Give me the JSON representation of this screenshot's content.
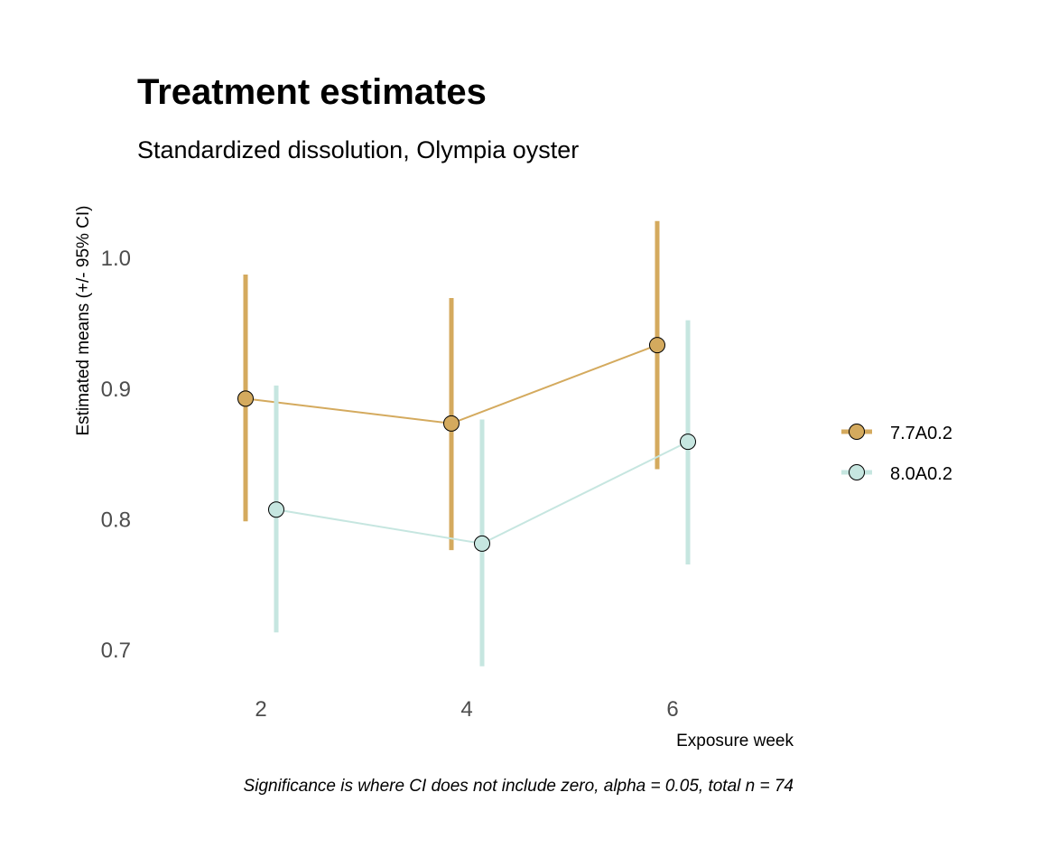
{
  "chart_data": {
    "type": "line",
    "title": "Treatment estimates",
    "subtitle": "Standardized dissolution, Olympia oyster",
    "xlabel": "Exposure week",
    "ylabel": "Estimated means (+/- 95% CI)",
    "caption": "Significance is where CI does not include zero, alpha = 0.05, total n = 74",
    "x": [
      2,
      4,
      6
    ],
    "x_ticks": [
      "2",
      "4",
      "6"
    ],
    "y_ticks": [
      "0.7",
      "0.8",
      "0.9",
      "1.0"
    ],
    "ylim": [
      0.66,
      1.05
    ],
    "grid": false,
    "legend_position": "right",
    "series": [
      {
        "name": "7.7A0.2",
        "color": "#d4aa5e",
        "values": [
          0.892,
          0.873,
          0.933
        ],
        "lower": [
          0.798,
          0.776,
          0.838
        ],
        "upper": [
          0.987,
          0.969,
          1.028
        ]
      },
      {
        "name": "8.0A0.2",
        "color": "#c6e6e0",
        "values": [
          0.807,
          0.781,
          0.859
        ],
        "lower": [
          0.713,
          0.687,
          0.765
        ],
        "upper": [
          0.902,
          0.876,
          0.952
        ]
      }
    ]
  }
}
